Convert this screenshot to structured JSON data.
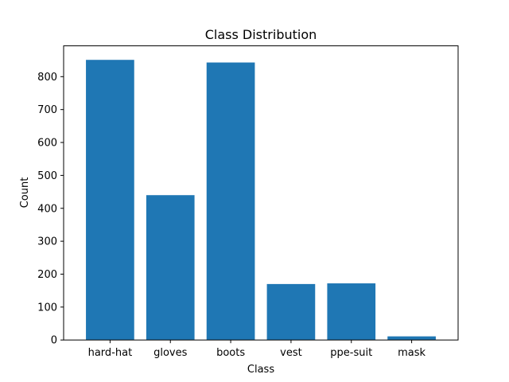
{
  "chart_data": {
    "type": "bar",
    "title": "Class Distribution",
    "xlabel": "Class",
    "ylabel": "Count",
    "categories": [
      "hard-hat",
      "gloves",
      "boots",
      "vest",
      "ppe-suit",
      "mask"
    ],
    "values": [
      851,
      440,
      843,
      170,
      172,
      11
    ],
    "ylim": [
      0,
      893.6
    ],
    "yticks": [
      "0",
      "100",
      "200",
      "300",
      "400",
      "500",
      "600",
      "700",
      "800"
    ],
    "grid": false,
    "bar_color": "#1f77b4"
  }
}
